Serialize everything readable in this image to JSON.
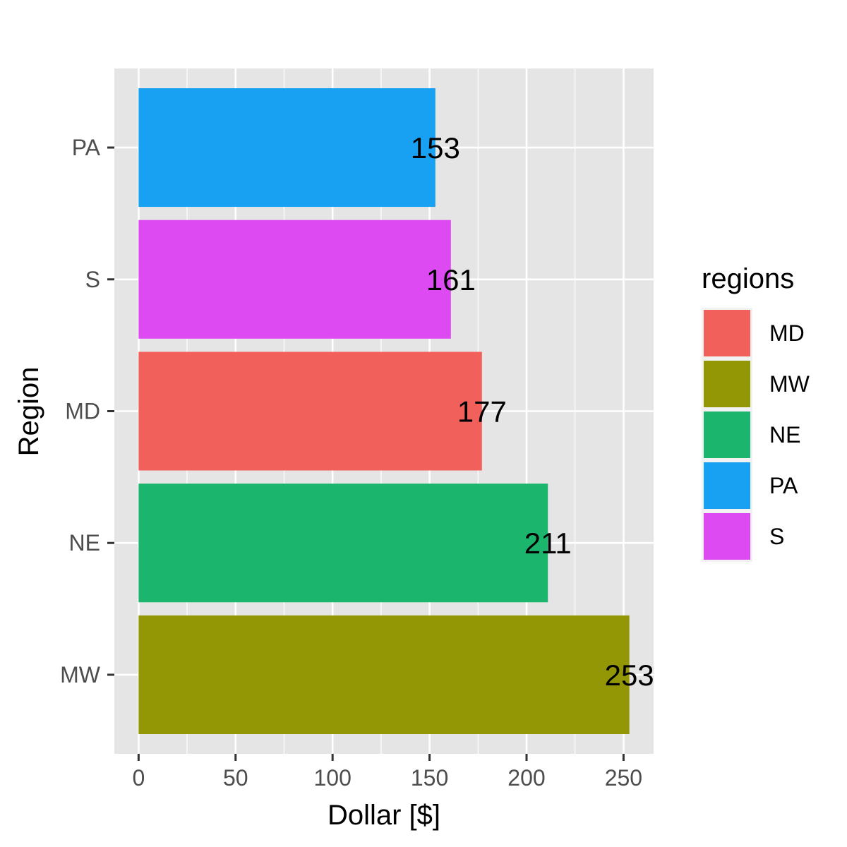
{
  "chart_data": {
    "type": "bar",
    "orientation": "horizontal",
    "categories": [
      "PA",
      "S",
      "MD",
      "NE",
      "MW"
    ],
    "values": [
      153,
      161,
      177,
      211,
      253
    ],
    "data_labels": [
      "153",
      "161",
      "177",
      "211",
      "253"
    ],
    "colors": {
      "PA": "#18a0f2",
      "S": "#dd4af2",
      "MD": "#f2605b",
      "NE": "#1bb56d",
      "MW": "#939705"
    },
    "xlabel": "Dollar [$]",
    "ylabel": "Region",
    "xlim": [
      -12.5,
      265.5
    ],
    "x_ticks": [
      0,
      50,
      100,
      150,
      200,
      250
    ],
    "x_tick_labels": [
      "0",
      "50",
      "100",
      "150",
      "200",
      "250"
    ],
    "grid": true,
    "panel_background": "#e5e5e5",
    "legend": {
      "title": "regions",
      "position": "right",
      "items": [
        "MD",
        "MW",
        "NE",
        "PA",
        "S"
      ]
    }
  }
}
